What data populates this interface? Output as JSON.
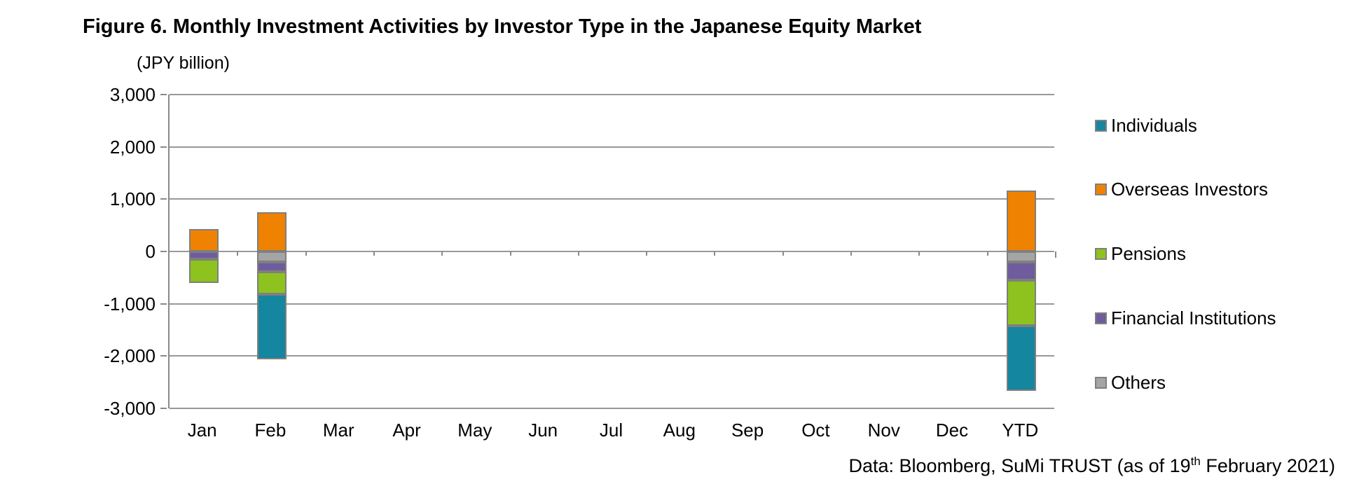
{
  "title": "Figure 6. Monthly Investment Activities by Investor Type in the Japanese Equity Market",
  "axis_unit_label": "(JPY billion)",
  "source": {
    "prefix": "Data: Bloomberg, SuMi TRUST (as of 19",
    "sup": "th",
    "suffix": " February 2021)"
  },
  "chart_data": {
    "type": "bar",
    "stacked": true,
    "title": "Figure 6. Monthly Investment Activities by Investor Type in the Japanese Equity Market",
    "unit": "JPY billion",
    "xlabel": "",
    "ylabel": "(JPY billion)",
    "categories": [
      "Jan",
      "Feb",
      "Mar",
      "Apr",
      "May",
      "Jun",
      "Jul",
      "Aug",
      "Sep",
      "Oct",
      "Nov",
      "Dec",
      "YTD"
    ],
    "series": [
      {
        "name": "Individuals",
        "color": "#14869f",
        "values": [
          0,
          -1245,
          0,
          0,
          0,
          0,
          0,
          0,
          0,
          0,
          0,
          0,
          -1245
        ]
      },
      {
        "name": "Overseas Investors",
        "color": "#ef8200",
        "values": [
          425,
          745,
          0,
          0,
          0,
          0,
          0,
          0,
          0,
          0,
          0,
          0,
          1170
        ]
      },
      {
        "name": "Pensions",
        "color": "#8dc21f",
        "values": [
          -455,
          -425,
          0,
          0,
          0,
          0,
          0,
          0,
          0,
          0,
          0,
          0,
          -880
        ]
      },
      {
        "name": "Financial Institutions",
        "color": "#6f5c9e",
        "values": [
          -150,
          -190,
          0,
          0,
          0,
          0,
          0,
          0,
          0,
          0,
          0,
          0,
          -340
        ]
      },
      {
        "name": "Others",
        "color": "#a5a5a5",
        "values": [
          0,
          -205,
          0,
          0,
          0,
          0,
          0,
          0,
          0,
          0,
          0,
          0,
          -205
        ]
      }
    ],
    "ylim": [
      -3000,
      3000
    ],
    "ytick_step": 1000,
    "ytick_labels": [
      "3,000",
      "2,000",
      "1,000",
      "0",
      "-1,000",
      "-2,000",
      "-3,000"
    ],
    "grid": true,
    "legend_position": "right",
    "notes": "Stacked column chart; negative stacks ordered Others, Financial Institutions, Pensions, Individuals below zero"
  }
}
